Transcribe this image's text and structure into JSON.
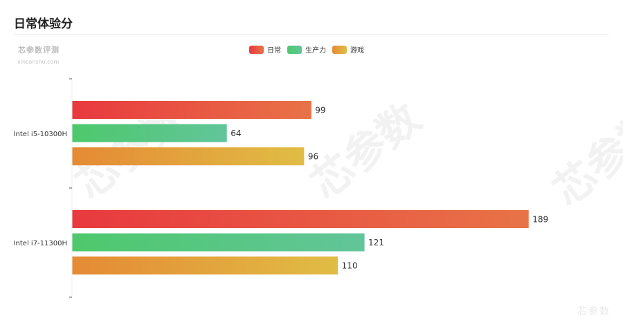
{
  "title": "日常体验分",
  "brand": {
    "name": "芯参数评测",
    "url": "xincanshu.com"
  },
  "watermark_text": "芯参数",
  "chart_data": {
    "type": "bar",
    "orientation": "horizontal",
    "categories": [
      "Intel i5-10300H",
      "Intel i7-11300H"
    ],
    "series": [
      {
        "name": "日常",
        "values": [
          99,
          189
        ],
        "color_start": "#e8393f",
        "color_end": "#e87347"
      },
      {
        "name": "生产力",
        "values": [
          64,
          121
        ],
        "color_start": "#4ec86c",
        "color_end": "#62c59a"
      },
      {
        "name": "游戏",
        "values": [
          96,
          110
        ],
        "color_start": "#e58a35",
        "color_end": "#e0bd45"
      }
    ],
    "xlim": [
      0,
      200
    ],
    "legend_position": "top-center",
    "grid": false,
    "show_data_labels": true
  }
}
